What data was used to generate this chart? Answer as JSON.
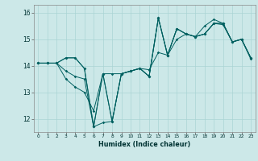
{
  "title": "",
  "xlabel": "Humidex (Indice chaleur)",
  "ylabel": "",
  "background_color": "#cce8e8",
  "line_color": "#006060",
  "grid_color": "#aad4d4",
  "xlim": [
    -0.5,
    23.5
  ],
  "ylim": [
    11.5,
    16.3
  ],
  "yticks": [
    12,
    13,
    14,
    15,
    16
  ],
  "xticks": [
    0,
    1,
    2,
    3,
    4,
    5,
    6,
    7,
    8,
    9,
    10,
    11,
    12,
    13,
    14,
    15,
    16,
    17,
    18,
    19,
    20,
    21,
    22,
    23
  ],
  "series": {
    "line1_x": [
      0,
      1,
      2,
      3,
      4,
      5,
      6,
      7,
      8,
      9,
      10,
      11,
      12,
      13,
      14,
      15,
      16,
      17,
      18,
      19,
      20,
      21,
      22,
      23
    ],
    "line1_y": [
      14.1,
      14.1,
      14.1,
      13.8,
      13.6,
      13.5,
      11.7,
      13.7,
      11.9,
      13.7,
      13.8,
      13.9,
      13.6,
      15.8,
      14.4,
      15.4,
      15.2,
      15.1,
      15.2,
      15.6,
      15.6,
      14.9,
      15.0,
      14.3
    ],
    "line2_x": [
      0,
      1,
      2,
      3,
      4,
      5,
      6,
      7,
      8,
      9,
      10,
      11,
      12,
      13,
      14,
      15,
      16,
      17,
      18,
      19,
      20,
      21,
      22,
      23
    ],
    "line2_y": [
      14.1,
      14.1,
      14.1,
      13.5,
      13.2,
      13.0,
      12.3,
      13.7,
      13.7,
      13.7,
      13.8,
      13.9,
      13.85,
      14.5,
      14.4,
      15.0,
      15.2,
      15.1,
      15.2,
      15.6,
      15.6,
      14.9,
      15.0,
      14.3
    ],
    "line3_x": [
      0,
      1,
      2,
      3,
      4,
      5,
      6,
      7,
      8,
      9,
      10,
      11,
      12,
      13,
      14,
      15,
      16,
      17,
      18,
      19,
      20,
      21,
      22,
      23
    ],
    "line3_y": [
      14.1,
      14.1,
      14.1,
      14.3,
      14.3,
      13.9,
      11.7,
      11.85,
      11.9,
      13.7,
      13.8,
      13.9,
      13.6,
      15.8,
      14.4,
      15.4,
      15.2,
      15.1,
      15.5,
      15.75,
      15.6,
      14.9,
      15.0,
      14.3
    ],
    "line4_x": [
      0,
      1,
      2,
      3,
      4,
      5,
      6,
      7,
      8,
      9,
      10,
      11,
      12,
      13,
      14,
      15,
      16,
      17,
      18,
      19,
      20,
      21,
      22,
      23
    ],
    "line4_y": [
      14.1,
      14.1,
      14.1,
      14.3,
      14.3,
      13.9,
      11.7,
      13.7,
      11.9,
      13.7,
      13.8,
      13.9,
      13.6,
      15.8,
      14.4,
      15.4,
      15.2,
      15.1,
      15.2,
      15.6,
      15.55,
      14.9,
      15.0,
      14.25
    ]
  }
}
